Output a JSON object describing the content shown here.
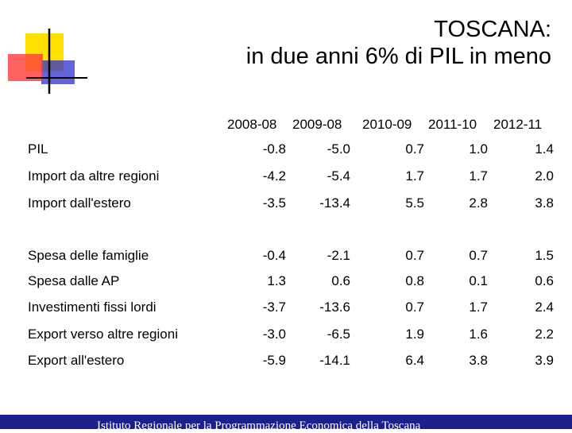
{
  "slide": {
    "title_line1": "TOSCANA:",
    "title_line2": "in due anni 6% di PIL in meno",
    "footer": "Istituto Regionale per la Programmazione Economica della Toscana"
  },
  "table": {
    "columns": [
      "2008-08",
      "2009-08",
      "2010-09",
      "2011-10",
      "2012-11"
    ],
    "rows": [
      {
        "label": "PIL",
        "values": [
          "-0.8",
          "-5.0",
          "0.7",
          "1.0",
          "1.4"
        ]
      },
      {
        "label": "Import da altre regioni",
        "values": [
          "-4.2",
          "-5.4",
          "1.7",
          "1.7",
          "2.0"
        ]
      },
      {
        "label": "Import dall'estero",
        "values": [
          "-3.5",
          "-13.4",
          "5.5",
          "2.8",
          "3.8"
        ]
      },
      {
        "label": "Spesa delle famiglie",
        "values": [
          "-0.4",
          "-2.1",
          "0.7",
          "0.7",
          "1.5"
        ]
      },
      {
        "label": "Spesa dalle AP",
        "values": [
          "1.3",
          "0.6",
          "0.8",
          "0.1",
          "0.6"
        ]
      },
      {
        "label": "Investimenti fissi lordi",
        "values": [
          "-3.7",
          "-13.6",
          "0.7",
          "1.7",
          "2.4"
        ]
      },
      {
        "label": "Export verso altre regioni",
        "values": [
          "-3.0",
          "-6.5",
          "1.9",
          "1.6",
          "2.2"
        ]
      },
      {
        "label": "Export all'estero",
        "values": [
          "-5.9",
          "-14.1",
          "6.4",
          "3.8",
          "3.9"
        ]
      }
    ]
  },
  "colors": {
    "logo_yellow": "#ffe000",
    "logo_red": "#ff3b3b",
    "logo_blue": "#2f2fd0",
    "footer_bg": "#1c1f8c"
  }
}
